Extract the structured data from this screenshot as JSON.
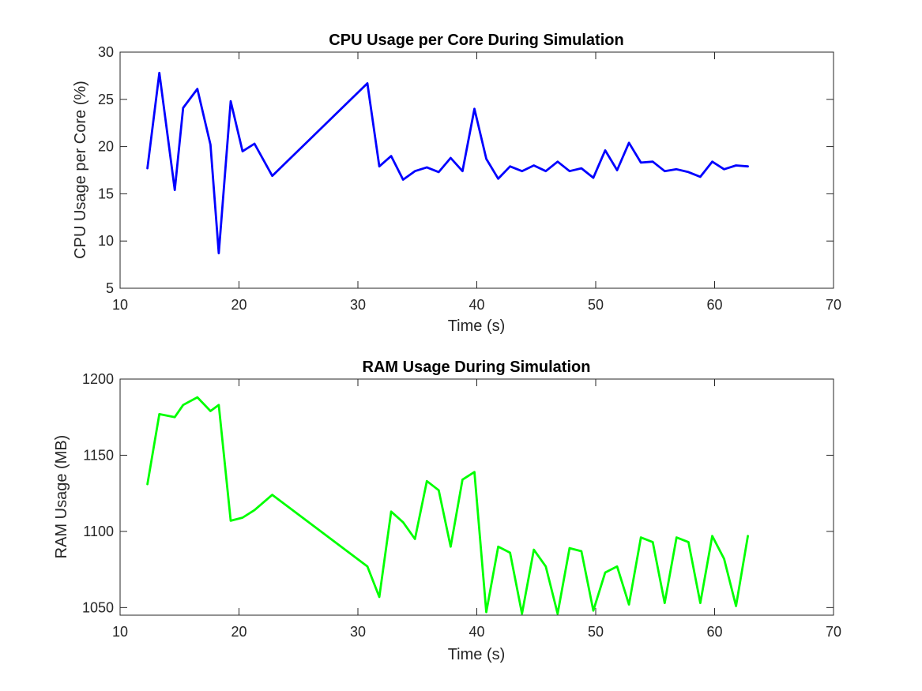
{
  "chart_data": [
    {
      "type": "line",
      "title": "CPU Usage per Core During Simulation",
      "xlabel": "Time (s)",
      "ylabel": "CPU Usage per Core (%)",
      "xlim": [
        10,
        70
      ],
      "ylim": [
        5,
        30
      ],
      "xticks": [
        10,
        20,
        30,
        40,
        50,
        60,
        70
      ],
      "yticks": [
        5,
        10,
        15,
        20,
        25,
        30
      ],
      "grid": false,
      "series": [
        {
          "color": "#0000ff",
          "x": [
            12.3,
            13.3,
            14.6,
            15.3,
            16.5,
            17.6,
            18.3,
            19.3,
            20.3,
            21.3,
            22.8,
            30.8,
            31.8,
            32.8,
            33.8,
            34.8,
            35.8,
            36.8,
            37.8,
            38.8,
            39.8,
            40.8,
            41.8,
            42.8,
            43.8,
            44.8,
            45.8,
            46.8,
            47.8,
            48.8,
            49.8,
            50.8,
            51.8,
            52.8,
            53.8,
            54.8,
            55.8,
            56.8,
            57.8,
            58.8,
            59.8,
            60.8,
            61.8,
            62.8
          ],
          "y": [
            17.7,
            27.8,
            15.4,
            24.1,
            26.1,
            20.2,
            8.7,
            24.8,
            19.5,
            20.3,
            16.9,
            26.7,
            17.9,
            19.0,
            16.5,
            17.4,
            17.8,
            17.3,
            18.8,
            17.4,
            24.0,
            18.7,
            16.6,
            17.9,
            17.4,
            18.0,
            17.4,
            18.4,
            17.4,
            17.7,
            16.7,
            19.6,
            17.5,
            20.4,
            18.3,
            18.4,
            17.4,
            17.6,
            17.3,
            16.8,
            18.4,
            17.6,
            18.0,
            17.9
          ]
        }
      ]
    },
    {
      "type": "line",
      "title": "RAM Usage During Simulation",
      "xlabel": "Time (s)",
      "ylabel": "RAM Usage (MB)",
      "xlim": [
        10,
        70
      ],
      "ylim": [
        1045,
        1200
      ],
      "xticks": [
        10,
        20,
        30,
        40,
        50,
        60,
        70
      ],
      "yticks": [
        1050,
        1100,
        1150,
        1200
      ],
      "grid": false,
      "series": [
        {
          "color": "#00ff00",
          "x": [
            12.3,
            13.3,
            14.6,
            15.3,
            16.5,
            17.6,
            18.3,
            19.3,
            20.3,
            21.3,
            22.8,
            30.8,
            31.8,
            32.8,
            33.8,
            34.8,
            35.8,
            36.8,
            37.8,
            38.8,
            39.8,
            40.8,
            41.8,
            42.8,
            43.8,
            44.8,
            45.8,
            46.8,
            47.8,
            48.8,
            49.8,
            50.8,
            51.8,
            52.8,
            53.8,
            54.8,
            55.8,
            56.8,
            57.8,
            58.8,
            59.8,
            60.8,
            61.8,
            62.8
          ],
          "y": [
            1131,
            1177,
            1175,
            1183,
            1188,
            1179,
            1183,
            1107,
            1109,
            1114,
            1124,
            1077,
            1057,
            1113,
            1106,
            1095,
            1133,
            1127,
            1090,
            1134,
            1139,
            1047,
            1090,
            1086,
            1046,
            1088,
            1077,
            1046,
            1089,
            1087,
            1048,
            1073,
            1077,
            1052,
            1096,
            1093,
            1053,
            1096,
            1093,
            1053,
            1097,
            1082,
            1051,
            1097
          ]
        }
      ]
    }
  ]
}
